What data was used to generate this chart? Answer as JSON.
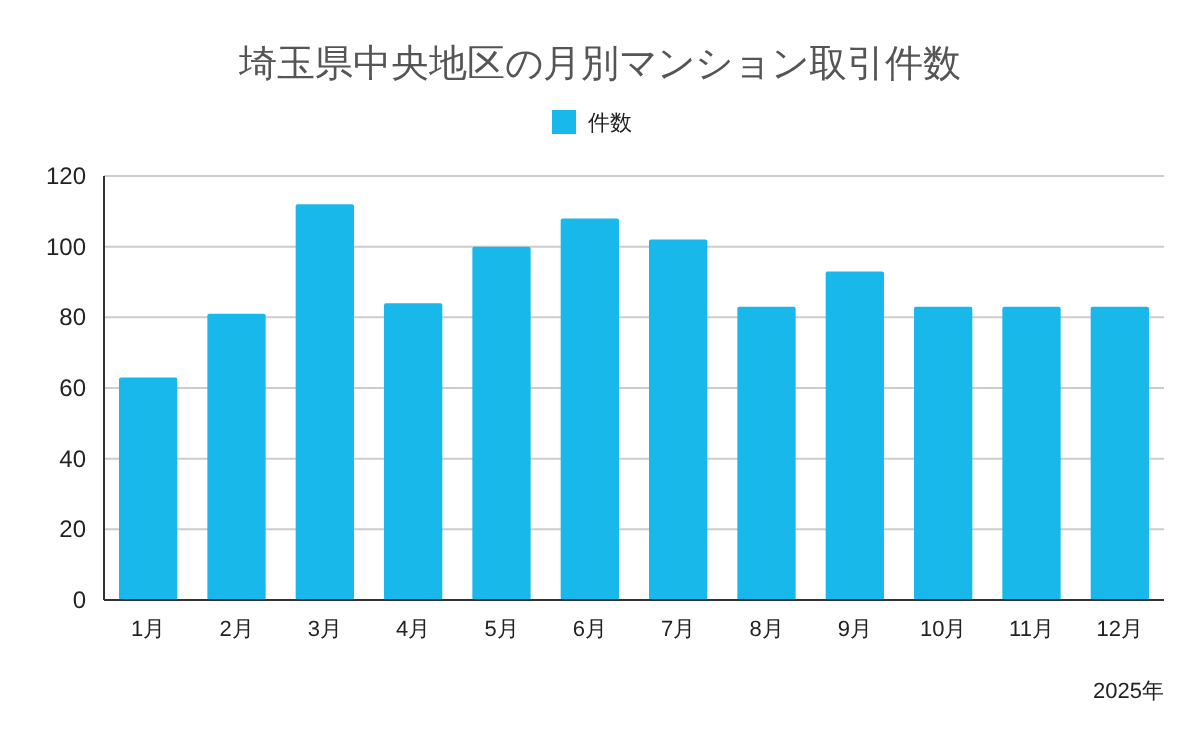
{
  "chart_data": {
    "type": "bar",
    "title": "埼玉県中央地区の月別マンション取引件数",
    "xlabel": "2025年",
    "categories": [
      "1月",
      "2月",
      "3月",
      "4月",
      "5月",
      "6月",
      "7月",
      "8月",
      "9月",
      "10月",
      "11月",
      "12月"
    ],
    "series": [
      {
        "name": "件数",
        "color": "#18b8eb",
        "values": [
          63,
          81,
          112,
          84,
          100,
          108,
          102,
          83,
          93,
          83,
          83,
          83
        ]
      }
    ],
    "ylim": [
      0,
      120
    ],
    "yticks": [
      0,
      20,
      40,
      60,
      80,
      100,
      120
    ],
    "grid": "y",
    "legend": "top"
  }
}
